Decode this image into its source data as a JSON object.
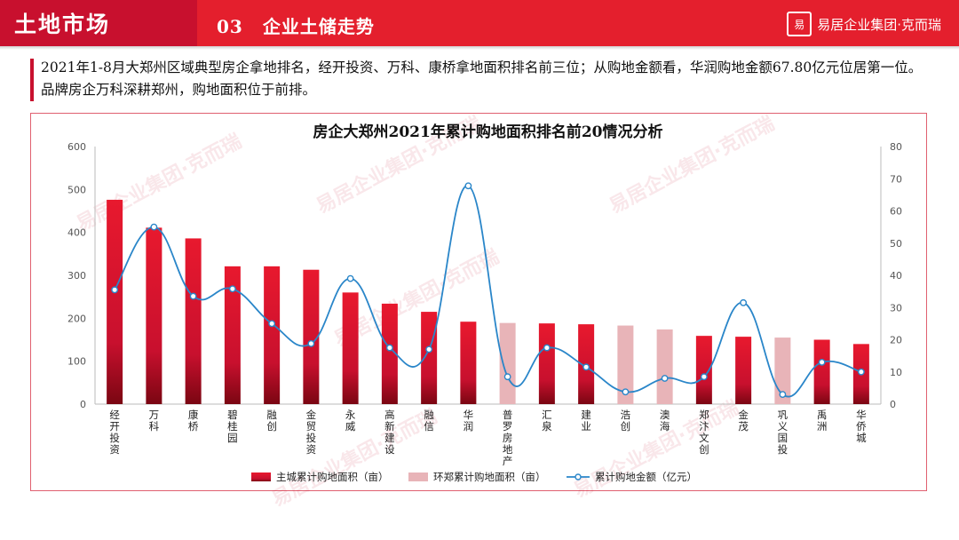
{
  "header": {
    "section_title": "土地市场",
    "sub_number": "03",
    "sub_title": "企业土储走势",
    "logo_mark": "易",
    "logo_text": "易居企业集团·克而瑞"
  },
  "summary": {
    "text": "2021年1-8月大郑州区域典型房企拿地排名，经开投资、万科、康桥拿地面积排名前三位；从购地金额看，华润购地金额67.80亿元位居第一位。品牌房企万科深耕郑州，购地面积位于前排。"
  },
  "watermark": "易居企业集团·克而瑞",
  "colors": {
    "main_bar": "#d3152a",
    "ring_bar": "#e8b4b8",
    "line": "#2a86c9",
    "header_red": "#e41f2d"
  },
  "chart_data": {
    "type": "bar",
    "title": "房企大郑州2021年累计购地面积排名前20情况分析",
    "categories": [
      "经开投资",
      "万科",
      "康桥",
      "碧桂园",
      "融创",
      "金贸投资",
      "永威",
      "高新建设",
      "融信",
      "华润",
      "普罗房地产",
      "汇泉",
      "建业",
      "浩创",
      "澳海",
      "郑汴文创",
      "金茂",
      "巩义国投",
      "禹洲",
      "华侨城"
    ],
    "series": [
      {
        "name": "主城累计购地面积（亩）",
        "type": "bar",
        "axis": "left",
        "values": [
          476,
          411,
          386,
          321,
          321,
          313,
          260,
          234,
          215,
          192,
          null,
          188,
          186,
          null,
          null,
          159,
          157,
          null,
          150,
          140
        ]
      },
      {
        "name": "环郑累计购地面积（亩）",
        "type": "bar",
        "axis": "left",
        "values": [
          null,
          null,
          null,
          null,
          null,
          null,
          null,
          null,
          null,
          null,
          189,
          null,
          null,
          183,
          174,
          null,
          null,
          155,
          null,
          null
        ]
      },
      {
        "name": "累计购地金额（亿元）",
        "type": "line",
        "axis": "right",
        "values": [
          35.5,
          55,
          33.5,
          35.8,
          25,
          18.8,
          39,
          17.5,
          17,
          67.8,
          8.5,
          17.5,
          11.5,
          3.8,
          8,
          8.5,
          31.5,
          3,
          13,
          10
        ]
      }
    ],
    "ylim_left": [
      0,
      600
    ],
    "yticks_left": [
      0,
      100,
      200,
      300,
      400,
      500,
      600
    ],
    "ylim_right": [
      0,
      80
    ],
    "yticks_right": [
      0,
      10,
      20,
      30,
      40,
      50,
      60,
      70,
      80
    ],
    "legend_position": "bottom",
    "grid": false
  }
}
